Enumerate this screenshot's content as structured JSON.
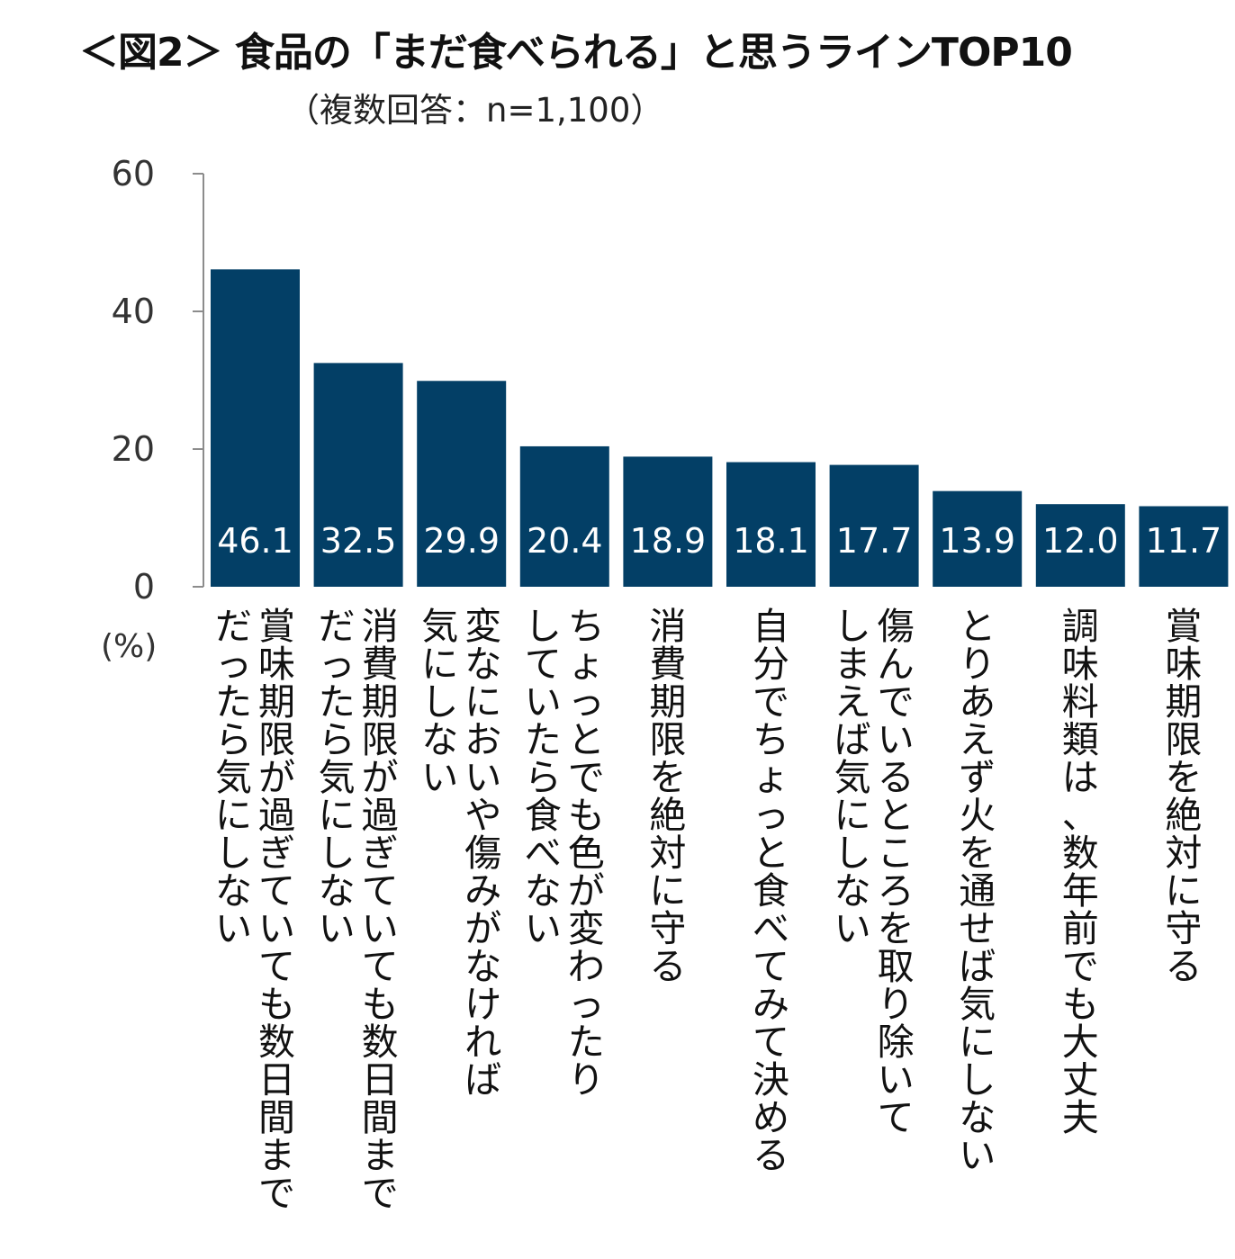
{
  "chart_data": {
    "type": "bar",
    "title": "＜図2＞ 食品の「まだ食べられる」と思うラインTOP10",
    "subtitle": "（複数回答：n=1,100）",
    "ylabel": "(%)",
    "xlabel": "",
    "ylim": [
      0,
      60
    ],
    "yticks": [
      0,
      20,
      40,
      60
    ],
    "bar_color": "#033f66",
    "label_color": "#ffffff",
    "categories": [
      [
        "賞味期限が過ぎていても数日間まで",
        "だったら気にしない"
      ],
      [
        "消費期限が過ぎていても数日間まで",
        "だったら気にしない"
      ],
      [
        "変なにおいや傷みがなければ",
        "気にしない"
      ],
      [
        "ちょっとでも色が変わったり",
        "していたら食べない"
      ],
      [
        "消費期限を絶対に守る"
      ],
      [
        "自分でちょっと食べてみて決める"
      ],
      [
        "傷んでいるところを取り除いて",
        "しまえば気にしない"
      ],
      [
        "とりあえず火を通せば気にしない"
      ],
      [
        "調味料類は、数年前でも大丈夫"
      ],
      [
        "賞味期限を絶対に守る"
      ]
    ],
    "values": [
      46.1,
      32.5,
      29.9,
      20.4,
      18.9,
      18.1,
      17.7,
      13.9,
      12.0,
      11.7
    ],
    "value_labels": [
      "46.1",
      "32.5",
      "29.9",
      "20.4",
      "18.9",
      "18.1",
      "17.7",
      "13.9",
      "12.0",
      "11.7"
    ]
  }
}
